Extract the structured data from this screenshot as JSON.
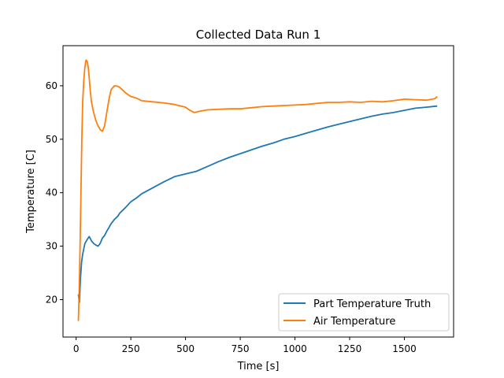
{
  "chart_data": {
    "type": "line",
    "title": "Collected Data Run 1",
    "xlabel": "Time [s]",
    "ylabel": "Temperature [C]",
    "xlim": [
      -60,
      1725
    ],
    "ylim": [
      13.0,
      67.5
    ],
    "xticks": [
      0,
      250,
      500,
      750,
      1000,
      1250,
      1500
    ],
    "yticks": [
      20,
      30,
      40,
      50,
      60
    ],
    "grid": false,
    "legend_position": "lower-right",
    "series": [
      {
        "name": "Part Temperature Truth",
        "color": "#1f77b4",
        "x": [
          10,
          15,
          20,
          25,
          30,
          35,
          40,
          50,
          60,
          70,
          80,
          90,
          100,
          110,
          120,
          130,
          140,
          150,
          160,
          175,
          190,
          200,
          225,
          250,
          275,
          300,
          350,
          400,
          450,
          500,
          550,
          600,
          650,
          700,
          750,
          800,
          850,
          900,
          950,
          1000,
          1050,
          1100,
          1150,
          1200,
          1250,
          1300,
          1350,
          1400,
          1450,
          1500,
          1550,
          1600,
          1650
        ],
        "values": [
          21.0,
          19.5,
          24.0,
          27.0,
          28.5,
          29.5,
          30.5,
          31.2,
          31.8,
          31.0,
          30.5,
          30.2,
          30.0,
          30.5,
          31.5,
          32.0,
          32.8,
          33.5,
          34.2,
          35.0,
          35.6,
          36.2,
          37.2,
          38.3,
          39.0,
          39.8,
          40.9,
          42.0,
          43.0,
          43.5,
          44.0,
          44.9,
          45.8,
          46.6,
          47.3,
          48.0,
          48.7,
          49.3,
          50.0,
          50.5,
          51.1,
          51.7,
          52.3,
          52.8,
          53.3,
          53.8,
          54.3,
          54.7,
          55.0,
          55.4,
          55.8,
          56.0,
          56.2
        ]
      },
      {
        "name": "Air Temperature",
        "color": "#ff7f0e",
        "x": [
          10,
          14,
          18,
          22,
          26,
          30,
          35,
          40,
          45,
          50,
          55,
          60,
          65,
          70,
          80,
          90,
          100,
          110,
          120,
          130,
          140,
          150,
          160,
          175,
          190,
          200,
          225,
          250,
          275,
          300,
          350,
          400,
          450,
          500,
          520,
          540,
          560,
          600,
          650,
          700,
          750,
          800,
          850,
          900,
          950,
          1000,
          1050,
          1100,
          1150,
          1200,
          1250,
          1300,
          1350,
          1400,
          1450,
          1500,
          1550,
          1600,
          1640,
          1650
        ],
        "values": [
          16.0,
          22.0,
          30.0,
          40.0,
          50.0,
          57.0,
          61.0,
          63.5,
          64.8,
          64.6,
          63.5,
          61.5,
          59.0,
          57.0,
          55.0,
          53.5,
          52.5,
          51.8,
          51.5,
          52.5,
          55.0,
          57.5,
          59.3,
          60.0,
          59.9,
          59.7,
          58.7,
          58.0,
          57.7,
          57.2,
          57.0,
          56.8,
          56.5,
          56.0,
          55.4,
          55.0,
          55.2,
          55.5,
          55.6,
          55.7,
          55.7,
          55.9,
          56.1,
          56.2,
          56.3,
          56.4,
          56.5,
          56.7,
          56.9,
          56.9,
          57.0,
          56.9,
          57.1,
          57.0,
          57.2,
          57.5,
          57.4,
          57.3,
          57.6,
          58.0
        ]
      }
    ]
  }
}
